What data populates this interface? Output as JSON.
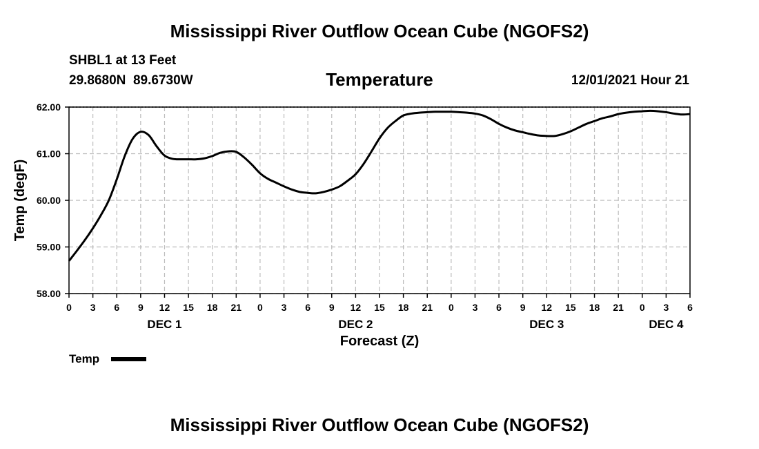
{
  "header": {
    "main_title": "Mississippi River Outflow Ocean Cube (NGOFS2)",
    "station": "SHBL1 at 13 Feet",
    "coords": "29.8680N  89.6730W",
    "variable": "Temperature",
    "timestamp": "12/01/2021 Hour 21"
  },
  "footer": {
    "title": "Mississippi River Outflow Ocean Cube (NGOFS2)"
  },
  "chart_data": {
    "type": "line",
    "title": "Temperature",
    "xlabel": "Forecast (Z)",
    "ylabel": "Temp (degF)",
    "xlim": [
      0,
      78
    ],
    "ylim": [
      58.0,
      62.0
    ],
    "yticks": [
      "58.00",
      "59.00",
      "60.00",
      "61.00",
      "62.00"
    ],
    "yticks_values": [
      58,
      59,
      60,
      61,
      62
    ],
    "xtick_labels": [
      "0",
      "3",
      "6",
      "9",
      "12",
      "15",
      "18",
      "21",
      "0",
      "3",
      "6",
      "9",
      "12",
      "15",
      "18",
      "21",
      "0",
      "3",
      "6",
      "9",
      "12",
      "15",
      "18",
      "21",
      "0",
      "3",
      "6"
    ],
    "day_labels": [
      {
        "label": "DEC 1",
        "hour": 12
      },
      {
        "label": "DEC 2",
        "hour": 36
      },
      {
        "label": "DEC 3",
        "hour": 60
      },
      {
        "label": "DEC 4",
        "hour": 75
      }
    ],
    "grid": true,
    "legend": {
      "position": "bottom-left",
      "entries": [
        "Temp"
      ]
    },
    "series": [
      {
        "name": "Temp",
        "x": [
          0,
          1,
          2,
          3,
          4,
          5,
          6,
          7,
          8,
          9,
          10,
          11,
          12,
          13,
          14,
          15,
          16,
          17,
          18,
          19,
          20,
          21,
          22,
          23,
          24,
          25,
          26,
          27,
          28,
          29,
          30,
          31,
          32,
          33,
          34,
          35,
          36,
          37,
          38,
          39,
          40,
          41,
          42,
          43,
          44,
          45,
          46,
          47,
          48,
          49,
          50,
          51,
          52,
          53,
          54,
          55,
          56,
          57,
          58,
          59,
          60,
          61,
          62,
          63,
          64,
          65,
          66,
          67,
          68,
          69,
          70,
          71,
          72,
          73,
          74,
          75,
          76,
          77,
          78
        ],
        "values": [
          58.7,
          58.92,
          59.15,
          59.4,
          59.68,
          60.0,
          60.45,
          60.95,
          61.32,
          61.47,
          61.4,
          61.16,
          60.96,
          60.89,
          60.88,
          60.88,
          60.88,
          60.9,
          60.95,
          61.02,
          61.05,
          61.04,
          60.92,
          60.76,
          60.58,
          60.46,
          60.38,
          60.3,
          60.23,
          60.18,
          60.16,
          60.15,
          60.18,
          60.23,
          60.3,
          60.42,
          60.56,
          60.78,
          61.05,
          61.33,
          61.55,
          61.7,
          61.82,
          61.86,
          61.88,
          61.89,
          61.9,
          61.9,
          61.9,
          61.89,
          61.88,
          61.86,
          61.82,
          61.74,
          61.64,
          61.56,
          61.5,
          61.46,
          61.42,
          61.39,
          61.38,
          61.38,
          61.42,
          61.48,
          61.56,
          61.64,
          61.7,
          61.76,
          61.8,
          61.85,
          61.88,
          61.9,
          61.91,
          61.92,
          61.91,
          61.89,
          61.86,
          61.84,
          61.85
        ]
      }
    ]
  }
}
